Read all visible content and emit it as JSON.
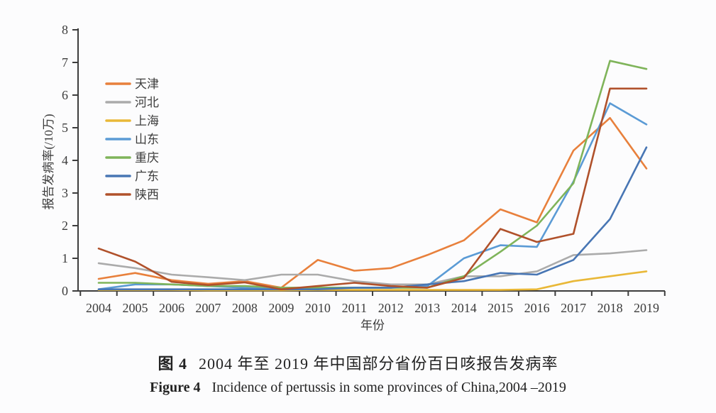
{
  "caption": {
    "zh_label": "图 4",
    "zh_text": "2004 年至 2019 年中国部分省份百日咳报告发病率",
    "en_label": "Figure 4",
    "en_text": "Incidence of pertussis in some provinces of China,2004 –2019"
  },
  "chart_data": {
    "type": "line",
    "title": "",
    "xlabel": "年份",
    "ylabel": "报告发病率(/10万)",
    "ylim": [
      0,
      8
    ],
    "yticks": [
      0,
      1,
      2,
      3,
      4,
      5,
      6,
      7,
      8
    ],
    "grid": false,
    "legend_position": "upper-left-inside",
    "categories": [
      "2004",
      "2005",
      "2006",
      "2007",
      "2008",
      "2009",
      "2010",
      "2011",
      "2012",
      "2013",
      "2014",
      "2015",
      "2016",
      "2017",
      "2018",
      "2019"
    ],
    "series": [
      {
        "name": "天津",
        "color": "#E8803C",
        "values": [
          0.37,
          0.55,
          0.33,
          0.22,
          0.3,
          0.1,
          0.95,
          0.62,
          0.7,
          1.1,
          1.55,
          2.5,
          2.1,
          4.3,
          5.3,
          3.75
        ]
      },
      {
        "name": "河北",
        "color": "#ABABAB",
        "values": [
          0.85,
          0.7,
          0.5,
          0.42,
          0.33,
          0.5,
          0.5,
          0.3,
          0.2,
          0.2,
          0.45,
          0.45,
          0.6,
          1.1,
          1.15,
          1.25
        ]
      },
      {
        "name": "上海",
        "color": "#E9B838",
        "values": [
          0.03,
          0.03,
          0.03,
          0.02,
          0.02,
          0.02,
          0.03,
          0.03,
          0.03,
          0.03,
          0.03,
          0.03,
          0.05,
          0.3,
          0.45,
          0.6
        ]
      },
      {
        "name": "山东",
        "color": "#5B9BD5",
        "values": [
          0.05,
          0.2,
          0.2,
          0.15,
          0.1,
          0.05,
          0.1,
          0.1,
          0.1,
          0.15,
          1.0,
          1.4,
          1.35,
          3.35,
          5.75,
          5.1
        ]
      },
      {
        "name": "重庆",
        "color": "#7FB45A",
        "values": [
          0.25,
          0.25,
          0.2,
          0.15,
          0.15,
          0.1,
          0.1,
          0.1,
          0.1,
          0.1,
          0.45,
          1.2,
          2.0,
          3.3,
          7.05,
          6.8
        ]
      },
      {
        "name": "广东",
        "color": "#4876B4",
        "values": [
          0.05,
          0.05,
          0.05,
          0.05,
          0.05,
          0.05,
          0.05,
          0.1,
          0.1,
          0.2,
          0.3,
          0.55,
          0.5,
          0.95,
          2.2,
          4.4
        ]
      },
      {
        "name": "陕西",
        "color": "#B0512B",
        "values": [
          1.3,
          0.9,
          0.28,
          0.18,
          0.26,
          0.05,
          0.15,
          0.25,
          0.15,
          0.1,
          0.4,
          1.9,
          1.5,
          1.75,
          6.2,
          6.2
        ]
      }
    ]
  }
}
